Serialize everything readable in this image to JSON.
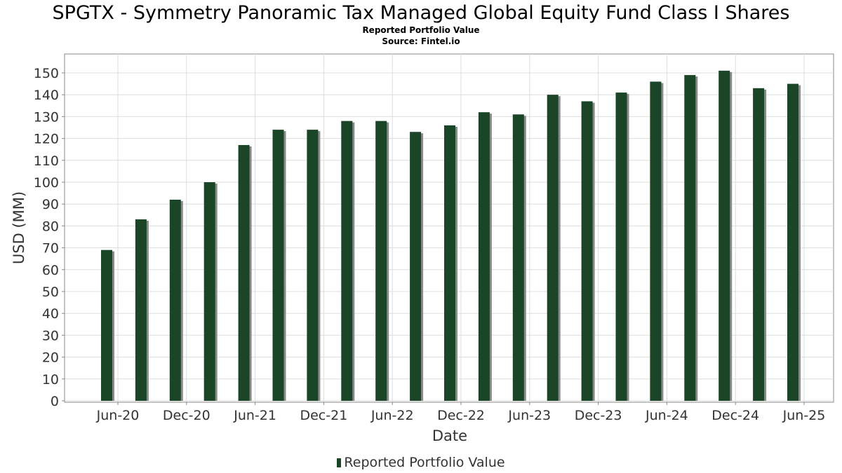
{
  "title": "SPGTX - Symmetry Panoramic Tax Managed Global Equity Fund Class I Shares",
  "subtitle": "Reported Portfolio Value",
  "source": "Source: Fintel.io",
  "chart_data": {
    "type": "bar",
    "xlabel": "Date",
    "ylabel": "USD (MM)",
    "ylim": [
      0,
      158
    ],
    "yticks": [
      0,
      10,
      20,
      30,
      40,
      50,
      60,
      70,
      80,
      90,
      100,
      110,
      120,
      130,
      140,
      150
    ],
    "xticks": [
      "Jun-20",
      "Dec-20",
      "Jun-21",
      "Dec-21",
      "Jun-22",
      "Dec-22",
      "Jun-23",
      "Dec-23",
      "Jun-24",
      "Dec-24",
      "Jun-25"
    ],
    "grid": true,
    "legend_position": "bottom",
    "series": [
      {
        "name": "Reported Portfolio Value",
        "color": "#1a4526",
        "values": [
          69,
          83,
          92,
          100,
          117,
          124,
          124,
          128,
          128,
          123,
          126,
          132,
          131,
          140,
          137,
          141,
          146,
          149,
          151,
          143,
          145
        ]
      }
    ]
  }
}
